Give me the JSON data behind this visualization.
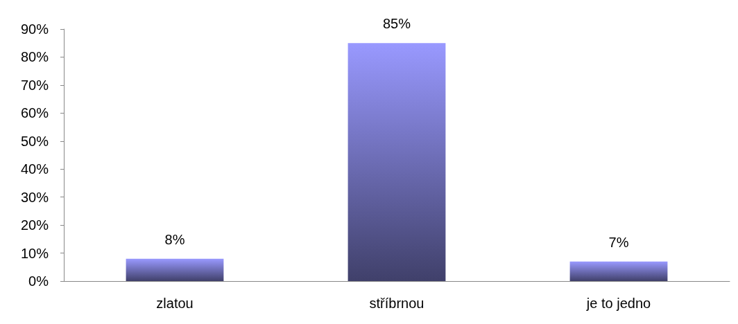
{
  "chart_data": {
    "type": "bar",
    "categories": [
      "zlatou",
      "stříbrnou",
      "je to jedno"
    ],
    "values": [
      8,
      85,
      7
    ],
    "value_labels": [
      "8%",
      "85%",
      "7%"
    ],
    "color": "#9999ff",
    "ylim": [
      0,
      90
    ],
    "yticks": [
      {
        "value": 0,
        "label": "0%"
      },
      {
        "value": 10,
        "label": "10%"
      },
      {
        "value": 20,
        "label": "20%"
      },
      {
        "value": 30,
        "label": "30%"
      },
      {
        "value": 40,
        "label": "40%"
      },
      {
        "value": 50,
        "label": "50%"
      },
      {
        "value": 60,
        "label": "60%"
      },
      {
        "value": 70,
        "label": "70%"
      },
      {
        "value": 80,
        "label": "80%"
      },
      {
        "value": 90,
        "label": "90%"
      }
    ],
    "grid": false
  }
}
